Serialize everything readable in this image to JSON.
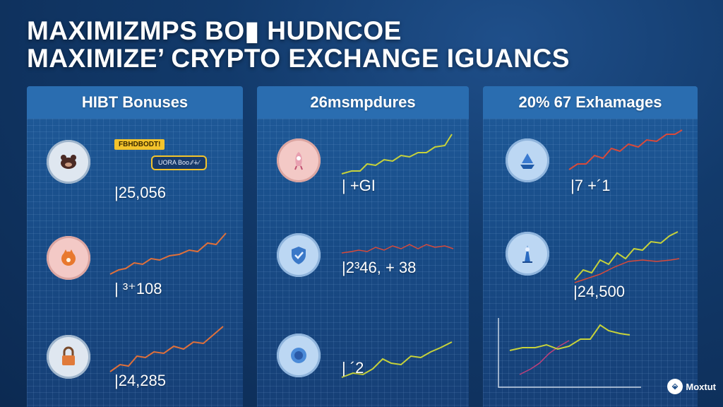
{
  "header": {
    "line1": "MAXIMIZMPS BO▮ HUDNCOE",
    "line2": "MAXIMIZE’ CRYPTO EXCHANGE IGUANCS"
  },
  "panels": [
    {
      "title": "HIBT Bonuses",
      "badge_yellow": "FBHDBODT!",
      "badge_outline": "UORA Boo ∕∕∔∕",
      "rows": [
        {
          "value": "|25,056",
          "icon": "bear-icon"
        },
        {
          "value": "| ³⁺108",
          "icon": "fox-icon"
        },
        {
          "value": "|24,285",
          "icon": "lock-icon"
        }
      ]
    },
    {
      "title": "26msmpdures",
      "rows": [
        {
          "value": "| +GI",
          "icon": "rocket-icon"
        },
        {
          "value": "|2³46, + 38",
          "icon": "shield-icon"
        },
        {
          "value": "| ´2",
          "icon": "coin-icon"
        }
      ]
    },
    {
      "title": "20% 67 Exhamages",
      "rows": [
        {
          "value": "|7 +´1",
          "icon": "ship-icon"
        },
        {
          "value": "|24,500",
          "icon": "tower-icon"
        }
      ]
    }
  ],
  "brand": {
    "name": "Moxtut"
  },
  "colors": {
    "line_orange": "#e0703a",
    "line_yellow": "#d7d43a",
    "line_red": "#d94a3a",
    "line_magenta": "#c0407a"
  }
}
